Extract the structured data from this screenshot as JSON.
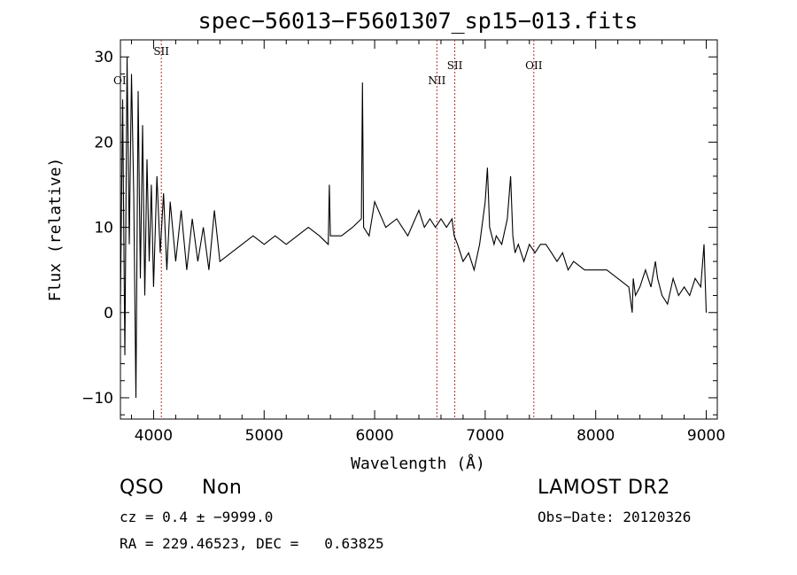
{
  "chart_data": {
    "type": "line",
    "title": "spec−56013−F5601307_sp15−013.fits",
    "xlabel": "Wavelength (Å)",
    "ylabel": "Flux (relative)",
    "xlim": [
      3700,
      9100
    ],
    "ylim": [
      -12.5,
      32
    ],
    "x_ticks": [
      4000,
      5000,
      6000,
      7000,
      8000,
      9000
    ],
    "x_tick_labels": [
      "4000",
      "5000",
      "6000",
      "7000",
      "8000",
      "9000"
    ],
    "y_ticks": [
      -10,
      0,
      10,
      20,
      30
    ],
    "y_tick_labels": [
      "−10",
      "0",
      "10",
      "20",
      "30"
    ],
    "grid": false,
    "series": [
      {
        "x": [
          3700,
          3720,
          3740,
          3760,
          3780,
          3800,
          3820,
          3840,
          3860,
          3880,
          3900,
          3920,
          3940,
          3960,
          3980,
          4000,
          4030,
          4060,
          4090,
          4120,
          4150,
          4200,
          4250,
          4300,
          4350,
          4400,
          4450,
          4500,
          4550,
          4600,
          4700,
          4800,
          4900,
          5000,
          5100,
          5200,
          5300,
          5400,
          5500,
          5580,
          5590,
          5600,
          5700,
          5800,
          5880,
          5890,
          5900,
          5950,
          6000,
          6100,
          6200,
          6300,
          6400,
          6450,
          6500,
          6550,
          6600,
          6650,
          6700,
          6720,
          6750,
          6800,
          6850,
          6900,
          6950,
          7000,
          7020,
          7040,
          7060,
          7080,
          7100,
          7150,
          7200,
          7230,
          7250,
          7270,
          7300,
          7350,
          7400,
          7450,
          7500,
          7550,
          7600,
          7650,
          7700,
          7750,
          7800,
          7900,
          8000,
          8100,
          8200,
          8300,
          8330,
          8340,
          8360,
          8400,
          8450,
          8500,
          8540,
          8560,
          8600,
          8650,
          8700,
          8750,
          8800,
          8850,
          8900,
          8950,
          8980,
          9000
        ],
        "y": [
          1,
          25,
          -5,
          30,
          8,
          28,
          14,
          -10,
          26,
          4,
          22,
          2,
          18,
          6,
          15,
          3,
          16,
          7,
          14,
          5,
          13,
          6,
          12,
          5,
          11,
          6,
          10,
          5,
          12,
          6,
          7,
          8,
          9,
          8,
          9,
          8,
          9,
          10,
          9,
          8,
          15,
          9,
          9,
          10,
          11,
          27,
          10,
          9,
          13,
          10,
          11,
          9,
          12,
          10,
          11,
          10,
          11,
          10,
          11,
          9,
          8,
          6,
          7,
          5,
          8,
          13,
          17,
          10,
          9,
          8,
          9,
          8,
          11,
          16,
          9,
          7,
          8,
          6,
          8,
          7,
          8,
          8,
          7,
          6,
          7,
          5,
          6,
          5,
          5,
          5,
          4,
          3,
          0,
          4,
          2,
          3,
          5,
          3,
          6,
          4,
          2,
          1,
          4,
          2,
          3,
          2,
          4,
          3,
          8,
          0
        ]
      }
    ],
    "lines": [
      {
        "x": 4070,
        "label": "SII"
      },
      {
        "x": 6563,
        "label": "NII"
      },
      {
        "x": 6725,
        "label": "SII"
      },
      {
        "x": 7440,
        "label": "OII"
      }
    ],
    "edge_label": "OI"
  },
  "info": {
    "class": "QSO",
    "subclass": "Non",
    "survey": "LAMOST DR2",
    "cz": "cz = 0.4 ± −9999.0",
    "obs_date": "Obs−Date: 20120326",
    "coords": "RA = 229.46523, DEC =   0.63825"
  }
}
